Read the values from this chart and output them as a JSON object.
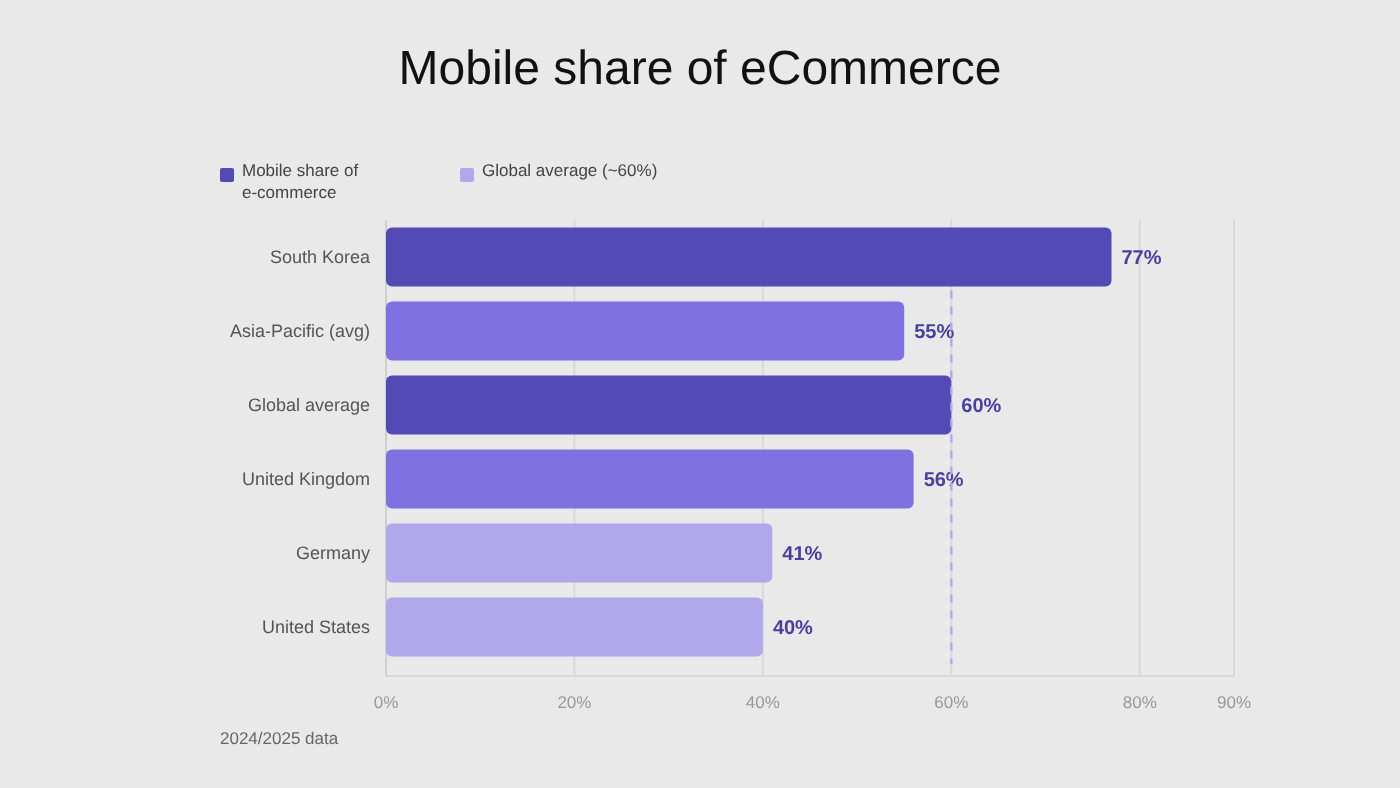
{
  "chart_data": {
    "type": "bar",
    "orientation": "horizontal",
    "title": "Mobile share of eCommerce",
    "categories": [
      "South Korea",
      "Asia-Pacific (avg)",
      "Global average",
      "United Kingdom",
      "Germany",
      "United States"
    ],
    "series": [
      {
        "name": "Mobile share of e-commerce",
        "color": "#544ab6",
        "colors": [
          "#544ab6",
          "#7f72e0",
          "#544ab6",
          "#7f72e0",
          "#b0a8eb",
          "#b0a8eb"
        ],
        "values": [
          77,
          55,
          60,
          56,
          41,
          40
        ]
      }
    ],
    "value_labels": [
      "77%",
      "55%",
      "60%",
      "56%",
      "41%",
      "40%"
    ],
    "xlim": [
      0,
      90
    ],
    "xticks": [
      {
        "value": 0,
        "label": "0%"
      },
      {
        "value": 20,
        "label": "20%"
      },
      {
        "value": 40,
        "label": "40%"
      },
      {
        "value": 60,
        "label": "60%"
      },
      {
        "value": 80,
        "label": "80%"
      },
      {
        "value": 90,
        "label": "90%"
      }
    ],
    "ref_lines": [
      {
        "axis": "x",
        "value": 60,
        "label": "Global average (~60%)",
        "color": "#b0a8eb",
        "line_style": "dashed"
      }
    ],
    "grid": "x",
    "legend": "top left",
    "annotations": [
      "2024/2025 data"
    ]
  }
}
